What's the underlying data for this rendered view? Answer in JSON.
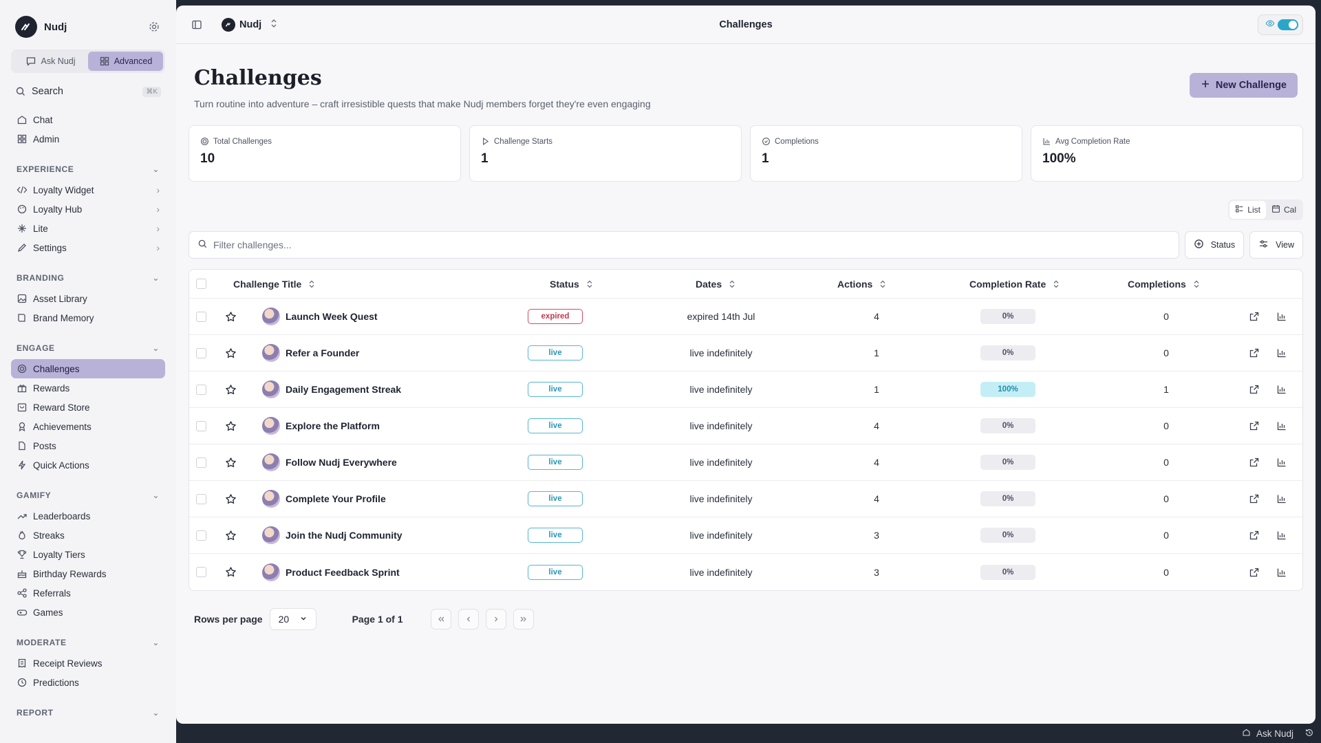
{
  "sidebar": {
    "brand": "Nudj",
    "modes": [
      "Ask Nudj",
      "Advanced"
    ],
    "search_label": "Search",
    "search_kbd": "⌘K",
    "top_items": [
      "Chat",
      "Admin"
    ],
    "sections": [
      {
        "title": "EXPERIENCE",
        "items": [
          "Loyalty Widget",
          "Loyalty Hub",
          "Lite",
          "Settings"
        ]
      },
      {
        "title": "BRANDING",
        "items": [
          "Asset Library",
          "Brand Memory"
        ]
      },
      {
        "title": "ENGAGE",
        "items": [
          "Challenges",
          "Rewards",
          "Reward Store",
          "Achievements",
          "Posts",
          "Quick Actions"
        ]
      },
      {
        "title": "GAMIFY",
        "items": [
          "Leaderboards",
          "Streaks",
          "Loyalty Tiers",
          "Birthday Rewards",
          "Referrals",
          "Games"
        ]
      },
      {
        "title": "MODERATE",
        "items": [
          "Receipt Reviews",
          "Predictions"
        ]
      },
      {
        "title": "REPORT",
        "items": []
      }
    ]
  },
  "topbar": {
    "workspace": "Nudj",
    "title": "Challenges"
  },
  "header": {
    "title": "Challenges",
    "subtitle": "Turn routine into adventure – craft irresistible quests that make Nudj members forget they're even engaging",
    "new_button": "New Challenge"
  },
  "stats": [
    {
      "label": "Total Challenges",
      "value": "10",
      "icon": "target-icon"
    },
    {
      "label": "Challenge Starts",
      "value": "1",
      "icon": "play-icon"
    },
    {
      "label": "Completions",
      "value": "1",
      "icon": "check-circle-icon"
    },
    {
      "label": "Avg Completion Rate",
      "value": "100%",
      "icon": "bar-chart-icon"
    }
  ],
  "view_switch": {
    "list": "List",
    "cal": "Cal"
  },
  "filter": {
    "placeholder": "Filter challenges...",
    "status_btn": "Status",
    "view_btn": "View"
  },
  "table": {
    "headers": {
      "title": "Challenge Title",
      "status": "Status",
      "dates": "Dates",
      "actions": "Actions",
      "rate": "Completion Rate",
      "completions": "Completions"
    },
    "rows": [
      {
        "title": "Launch Week Quest",
        "status": "expired",
        "dates": "expired 14th Jul",
        "actions": "4",
        "rate": "0%",
        "completions": "0"
      },
      {
        "title": "Refer a Founder",
        "status": "live",
        "dates": "live indefinitely",
        "actions": "1",
        "rate": "0%",
        "completions": "0"
      },
      {
        "title": "Daily Engagement Streak",
        "status": "live",
        "dates": "live indefinitely",
        "actions": "1",
        "rate": "100%",
        "completions": "1"
      },
      {
        "title": "Explore the Platform",
        "status": "live",
        "dates": "live indefinitely",
        "actions": "4",
        "rate": "0%",
        "completions": "0"
      },
      {
        "title": "Follow Nudj Everywhere",
        "status": "live",
        "dates": "live indefinitely",
        "actions": "4",
        "rate": "0%",
        "completions": "0"
      },
      {
        "title": "Complete Your Profile",
        "status": "live",
        "dates": "live indefinitely",
        "actions": "4",
        "rate": "0%",
        "completions": "0"
      },
      {
        "title": "Join the Nudj Community",
        "status": "live",
        "dates": "live indefinitely",
        "actions": "3",
        "rate": "0%",
        "completions": "0"
      },
      {
        "title": "Product Feedback Sprint",
        "status": "live",
        "dates": "live indefinitely",
        "actions": "3",
        "rate": "0%",
        "completions": "0"
      }
    ]
  },
  "pager": {
    "rows_label": "Rows per page",
    "rows_value": "20",
    "page_text": "Page 1 of 1"
  },
  "footer": {
    "ask": "Ask Nudj"
  },
  "colors": {
    "accent": "#b8b2d9",
    "live": "#56b5d1",
    "expired": "#d9485f",
    "sidebar_bg": "#f4f4f6"
  }
}
